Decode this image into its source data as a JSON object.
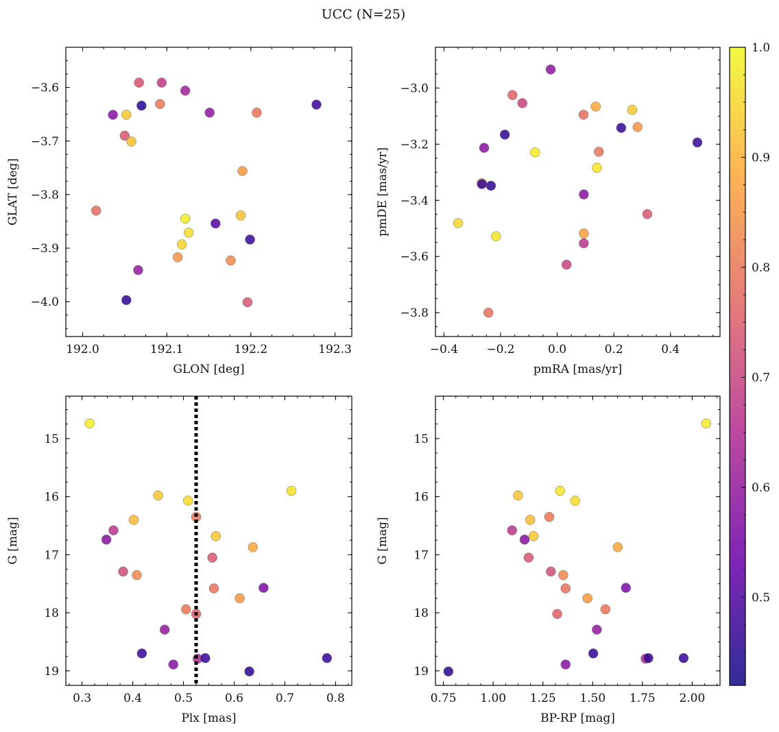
{
  "figure": {
    "title": "UCC (N=25)"
  },
  "colorbar": {
    "vmin": 0.42,
    "vmax": 1.0,
    "ticks": [
      0.5,
      0.6,
      0.7,
      0.8,
      0.9,
      1.0
    ],
    "tick_labels": [
      "0.5",
      "0.6",
      "0.7",
      "0.8",
      "0.9",
      "1.0"
    ],
    "colormap": "plasma",
    "colors": [
      "#0d0887",
      "#6a00a8",
      "#b12a90",
      "#e16462",
      "#fca636",
      "#f0f921"
    ]
  },
  "chart_data": [
    {
      "type": "scatter",
      "id": "glon_glat",
      "xlabel": "GLON [deg]",
      "ylabel": "GLAT [deg]",
      "xlim": [
        191.98,
        192.32
      ],
      "ylim": [
        -4.065,
        -3.525
      ],
      "y_inverted": false,
      "xticks": [
        192.0,
        192.1,
        192.2,
        192.3
      ],
      "xtick_labels": [
        "192.0",
        "192.1",
        "192.2",
        "192.3"
      ],
      "yticks": [
        -3.6,
        -3.7,
        -3.8,
        -3.9,
        -4.0
      ],
      "ytick_labels": [
        "−3.6",
        "−3.7",
        "−3.8",
        "−3.9",
        "−4.0"
      ],
      "points": [
        {
          "x": 192.067,
          "y": -3.591,
          "c": 0.73
        },
        {
          "x": 192.094,
          "y": -3.591,
          "c": 0.68
        },
        {
          "x": 192.122,
          "y": -3.606,
          "c": 0.62
        },
        {
          "x": 192.036,
          "y": -3.651,
          "c": 0.58
        },
        {
          "x": 192.052,
          "y": -3.651,
          "c": 0.93
        },
        {
          "x": 192.07,
          "y": -3.634,
          "c": 0.45
        },
        {
          "x": 192.092,
          "y": -3.631,
          "c": 0.8
        },
        {
          "x": 192.151,
          "y": -3.647,
          "c": 0.59
        },
        {
          "x": 192.207,
          "y": -3.647,
          "c": 0.79
        },
        {
          "x": 192.278,
          "y": -3.632,
          "c": 0.48
        },
        {
          "x": 192.05,
          "y": -3.69,
          "c": 0.74
        },
        {
          "x": 192.058,
          "y": -3.701,
          "c": 0.92
        },
        {
          "x": 192.19,
          "y": -3.756,
          "c": 0.86
        },
        {
          "x": 192.016,
          "y": -3.83,
          "c": 0.78
        },
        {
          "x": 192.122,
          "y": -3.845,
          "c": 0.98
        },
        {
          "x": 192.188,
          "y": -3.839,
          "c": 0.92
        },
        {
          "x": 192.158,
          "y": -3.854,
          "c": 0.51
        },
        {
          "x": 192.126,
          "y": -3.871,
          "c": 0.96
        },
        {
          "x": 192.199,
          "y": -3.884,
          "c": 0.47
        },
        {
          "x": 192.118,
          "y": -3.893,
          "c": 0.95
        },
        {
          "x": 192.113,
          "y": -3.917,
          "c": 0.85
        },
        {
          "x": 192.176,
          "y": -3.923,
          "c": 0.83
        },
        {
          "x": 192.066,
          "y": -3.941,
          "c": 0.6
        },
        {
          "x": 192.052,
          "y": -3.997,
          "c": 0.46
        },
        {
          "x": 192.196,
          "y": -4.001,
          "c": 0.74
        }
      ]
    },
    {
      "type": "scatter",
      "id": "pmra_pmde",
      "xlabel": "pmRA [mas/yr]",
      "ylabel": "pmDE [mas/yr]",
      "xlim": [
        -0.43,
        0.575
      ],
      "ylim": [
        -3.885,
        -2.855
      ],
      "y_inverted": false,
      "xticks": [
        -0.4,
        -0.2,
        0.0,
        0.2,
        0.4
      ],
      "xtick_labels": [
        "−0.4",
        "−0.2",
        "0.0",
        "0.2",
        "0.4"
      ],
      "yticks": [
        -3.0,
        -3.2,
        -3.4,
        -3.6,
        -3.8
      ],
      "ytick_labels": [
        "−3.0",
        "−3.2",
        "−3.4",
        "−3.6",
        "−3.8"
      ],
      "points": [
        {
          "x": -0.023,
          "y": -2.934,
          "c": 0.59
        },
        {
          "x": -0.158,
          "y": -3.025,
          "c": 0.76
        },
        {
          "x": -0.123,
          "y": -3.054,
          "c": 0.7
        },
        {
          "x": 0.136,
          "y": -3.066,
          "c": 0.88
        },
        {
          "x": 0.265,
          "y": -3.078,
          "c": 0.93
        },
        {
          "x": 0.093,
          "y": -3.095,
          "c": 0.78
        },
        {
          "x": 0.284,
          "y": -3.139,
          "c": 0.85
        },
        {
          "x": 0.226,
          "y": -3.142,
          "c": 0.47
        },
        {
          "x": -0.185,
          "y": -3.166,
          "c": 0.46
        },
        {
          "x": 0.495,
          "y": -3.194,
          "c": 0.47
        },
        {
          "x": -0.258,
          "y": -3.213,
          "c": 0.58
        },
        {
          "x": 0.147,
          "y": -3.227,
          "c": 0.79
        },
        {
          "x": -0.078,
          "y": -3.229,
          "c": 0.98
        },
        {
          "x": 0.14,
          "y": -3.284,
          "c": 0.97
        },
        {
          "x": -0.266,
          "y": -3.339,
          "c": 0.9
        },
        {
          "x": -0.266,
          "y": -3.342,
          "c": 0.47
        },
        {
          "x": -0.234,
          "y": -3.348,
          "c": 0.46
        },
        {
          "x": 0.094,
          "y": -3.379,
          "c": 0.58
        },
        {
          "x": 0.318,
          "y": -3.449,
          "c": 0.74
        },
        {
          "x": -0.35,
          "y": -3.481,
          "c": 0.95
        },
        {
          "x": 0.094,
          "y": -3.518,
          "c": 0.87
        },
        {
          "x": -0.216,
          "y": -3.528,
          "c": 0.97
        },
        {
          "x": 0.094,
          "y": -3.553,
          "c": 0.67
        },
        {
          "x": 0.033,
          "y": -3.629,
          "c": 0.7
        },
        {
          "x": -0.243,
          "y": -3.8,
          "c": 0.79
        }
      ]
    },
    {
      "type": "scatter",
      "id": "plx_g",
      "xlabel": "Plx [mas]",
      "ylabel": "G [mag]",
      "xlim": [
        0.268,
        0.832
      ],
      "ylim": [
        19.25,
        14.27
      ],
      "y_inverted": true,
      "xticks": [
        0.3,
        0.4,
        0.5,
        0.6,
        0.7,
        0.8
      ],
      "xtick_labels": [
        "0.3",
        "0.4",
        "0.5",
        "0.6",
        "0.7",
        "0.8"
      ],
      "yticks": [
        15,
        16,
        17,
        18,
        19
      ],
      "ytick_labels": [
        "15",
        "16",
        "17",
        "18",
        "19"
      ],
      "vline": {
        "x": 0.525,
        "style": "dotted",
        "color": "#000000"
      },
      "points": [
        {
          "x": 0.315,
          "y": 14.74,
          "c": 0.98
        },
        {
          "x": 0.45,
          "y": 15.98,
          "c": 0.93
        },
        {
          "x": 0.713,
          "y": 15.9,
          "c": 0.97
        },
        {
          "x": 0.509,
          "y": 16.07,
          "c": 0.96
        },
        {
          "x": 0.525,
          "y": 16.35,
          "c": 0.8
        },
        {
          "x": 0.402,
          "y": 16.4,
          "c": 0.91
        },
        {
          "x": 0.362,
          "y": 16.58,
          "c": 0.67
        },
        {
          "x": 0.564,
          "y": 16.68,
          "c": 0.93
        },
        {
          "x": 0.348,
          "y": 16.74,
          "c": 0.58
        },
        {
          "x": 0.637,
          "y": 16.87,
          "c": 0.88
        },
        {
          "x": 0.557,
          "y": 17.05,
          "c": 0.74
        },
        {
          "x": 0.381,
          "y": 17.29,
          "c": 0.72
        },
        {
          "x": 0.408,
          "y": 17.35,
          "c": 0.83
        },
        {
          "x": 0.56,
          "y": 17.58,
          "c": 0.79
        },
        {
          "x": 0.658,
          "y": 17.57,
          "c": 0.56
        },
        {
          "x": 0.611,
          "y": 17.75,
          "c": 0.86
        },
        {
          "x": 0.505,
          "y": 17.94,
          "c": 0.8
        },
        {
          "x": 0.525,
          "y": 18.02,
          "c": 0.76
        },
        {
          "x": 0.463,
          "y": 18.29,
          "c": 0.6
        },
        {
          "x": 0.418,
          "y": 18.7,
          "c": 0.47
        },
        {
          "x": 0.528,
          "y": 18.79,
          "c": 0.65
        },
        {
          "x": 0.543,
          "y": 18.78,
          "c": 0.47
        },
        {
          "x": 0.783,
          "y": 18.78,
          "c": 0.47
        },
        {
          "x": 0.48,
          "y": 18.89,
          "c": 0.58
        },
        {
          "x": 0.63,
          "y": 19.01,
          "c": 0.46
        }
      ]
    },
    {
      "type": "scatter",
      "id": "bprp_g",
      "xlabel": "BP-RP [mag]",
      "ylabel": "G [mag]",
      "xlim": [
        0.71,
        2.14
      ],
      "ylim": [
        19.25,
        14.27
      ],
      "y_inverted": true,
      "xticks": [
        0.75,
        1.0,
        1.25,
        1.5,
        1.75,
        2.0
      ],
      "xtick_labels": [
        "0.75",
        "1.00",
        "1.25",
        "1.50",
        "1.75",
        "2.00"
      ],
      "yticks": [
        15,
        16,
        17,
        18,
        19
      ],
      "ytick_labels": [
        "15",
        "16",
        "17",
        "18",
        "19"
      ],
      "points": [
        {
          "x": 2.07,
          "y": 14.74,
          "c": 0.98
        },
        {
          "x": 1.125,
          "y": 15.98,
          "c": 0.93
        },
        {
          "x": 1.336,
          "y": 15.9,
          "c": 0.97
        },
        {
          "x": 1.412,
          "y": 16.07,
          "c": 0.96
        },
        {
          "x": 1.186,
          "y": 16.4,
          "c": 0.91
        },
        {
          "x": 1.282,
          "y": 16.35,
          "c": 0.8
        },
        {
          "x": 1.095,
          "y": 16.58,
          "c": 0.67
        },
        {
          "x": 1.203,
          "y": 16.68,
          "c": 0.93
        },
        {
          "x": 1.158,
          "y": 16.74,
          "c": 0.58
        },
        {
          "x": 1.626,
          "y": 16.87,
          "c": 0.88
        },
        {
          "x": 1.178,
          "y": 17.05,
          "c": 0.74
        },
        {
          "x": 1.29,
          "y": 17.29,
          "c": 0.72
        },
        {
          "x": 1.352,
          "y": 17.35,
          "c": 0.83
        },
        {
          "x": 1.364,
          "y": 17.58,
          "c": 0.79
        },
        {
          "x": 1.667,
          "y": 17.57,
          "c": 0.56
        },
        {
          "x": 1.474,
          "y": 17.75,
          "c": 0.86
        },
        {
          "x": 1.564,
          "y": 17.94,
          "c": 0.8
        },
        {
          "x": 1.322,
          "y": 18.02,
          "c": 0.76
        },
        {
          "x": 1.521,
          "y": 18.29,
          "c": 0.6
        },
        {
          "x": 1.503,
          "y": 18.7,
          "c": 0.47
        },
        {
          "x": 1.766,
          "y": 18.79,
          "c": 0.65
        },
        {
          "x": 1.78,
          "y": 18.78,
          "c": 0.47
        },
        {
          "x": 1.957,
          "y": 18.78,
          "c": 0.47
        },
        {
          "x": 1.364,
          "y": 18.89,
          "c": 0.58
        },
        {
          "x": 0.775,
          "y": 19.01,
          "c": 0.46
        }
      ]
    }
  ]
}
